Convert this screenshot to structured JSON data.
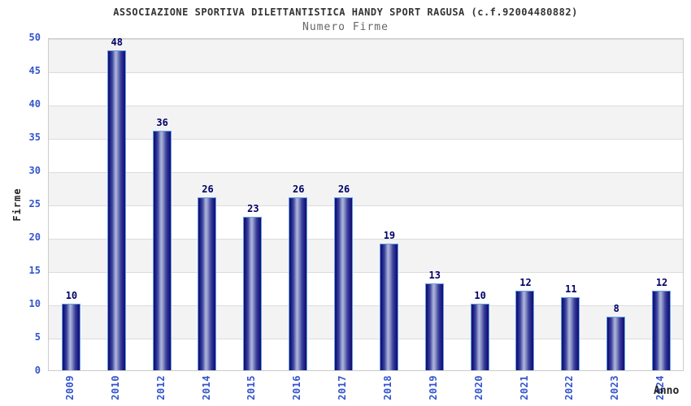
{
  "header": {
    "title": "ASSOCIAZIONE SPORTIVA DILETTANTISTICA HANDY SPORT RAGUSA (c.f.92004480882)",
    "subtitle": "Numero Firme"
  },
  "chart_data": {
    "type": "bar",
    "title": "ASSOCIAZIONE SPORTIVA DILETTANTISTICA HANDY SPORT RAGUSA (c.f.92004480882)",
    "subtitle": "Numero Firme",
    "xlabel": "Anno",
    "ylabel": "Firme",
    "categories": [
      "2009",
      "2010",
      "2012",
      "2014",
      "2015",
      "2016",
      "2017",
      "2018",
      "2019",
      "2020",
      "2021",
      "2022",
      "2023",
      "2024"
    ],
    "values": [
      10,
      48,
      36,
      26,
      23,
      26,
      26,
      19,
      13,
      10,
      12,
      11,
      8,
      12
    ],
    "ylim": [
      0,
      50
    ],
    "ytick_step": 5,
    "yticks": [
      0,
      5,
      10,
      15,
      20,
      25,
      30,
      35,
      40,
      45,
      50
    ],
    "grid": "alternating horizontal gray/white bands per 5 units, light gridline at each tick",
    "legend": "none",
    "bar_labels": "value shown above each bar",
    "colors": {
      "bar_dark": "#10106a",
      "bar_light": "#aeb5da",
      "bar_border": "#64a0e6",
      "tick_label": "#3355cc",
      "value_label": "#000066",
      "band_gray": "#f3f3f4",
      "band_white": "#ffffff",
      "plot_border": "#cccccc",
      "title_color": "#333333",
      "subtitle_color": "#666666",
      "axis_title_color": "#222222",
      "background": "#ffffff"
    }
  }
}
